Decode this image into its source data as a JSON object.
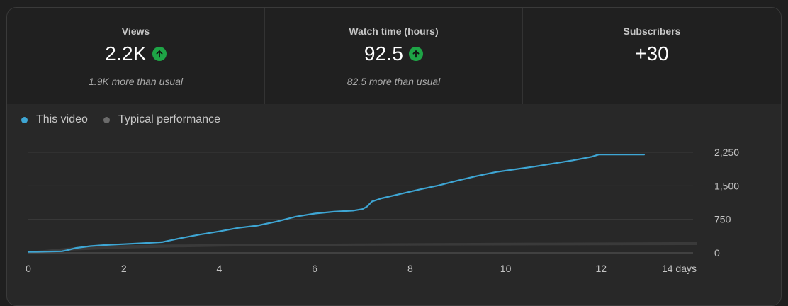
{
  "tabs": [
    {
      "label": "Views",
      "value": "2.2K",
      "note": "1.9K more than usual",
      "trend": "up",
      "selected": true
    },
    {
      "label": "Watch time (hours)",
      "value": "92.5",
      "note": "82.5 more than usual",
      "trend": "up",
      "selected": false
    },
    {
      "label": "Subscribers",
      "value": "+30",
      "note": "",
      "trend": "",
      "selected": false
    }
  ],
  "colors": {
    "this_video": "#3ea6d4",
    "typical": "#3a3a3a",
    "typical_dot": "#6b6b6b",
    "trend_up": "#1ea446"
  },
  "chart_data": {
    "type": "line",
    "legend": {
      "position": "top-left",
      "entries": [
        {
          "label": "This video",
          "color": "#3ea6d4"
        },
        {
          "label": "Typical performance",
          "color": "#6b6b6b"
        }
      ]
    },
    "x_unit_label": "14 days",
    "x_ticks": [
      {
        "value": 0,
        "label": "0"
      },
      {
        "value": 2,
        "label": "2"
      },
      {
        "value": 4,
        "label": "4"
      },
      {
        "value": 6,
        "label": "6"
      },
      {
        "value": 8,
        "label": "8"
      },
      {
        "value": 10,
        "label": "10"
      },
      {
        "value": 12,
        "label": "12"
      },
      {
        "value": 14,
        "label": "14 days"
      }
    ],
    "y_ticks": [
      {
        "value": 0,
        "label": "0"
      },
      {
        "value": 750,
        "label": "750"
      },
      {
        "value": 1500,
        "label": "1,500"
      },
      {
        "value": 2250,
        "label": "2,250"
      }
    ],
    "xlim": [
      0,
      14
    ],
    "ylim": [
      0,
      2250
    ],
    "grid": true,
    "series": [
      {
        "name": "This video",
        "x": [
          0,
          0.2,
          0.4,
          0.7,
          0.8,
          1.0,
          1.3,
          1.6,
          2.0,
          2.4,
          2.8,
          3.2,
          3.6,
          4.0,
          4.4,
          4.8,
          5.2,
          5.6,
          6.0,
          6.4,
          6.8,
          7.0,
          7.1,
          7.2,
          7.4,
          7.8,
          8.2,
          8.6,
          9.0,
          9.4,
          9.8,
          10.2,
          10.6,
          11.0,
          11.4,
          11.8,
          11.95,
          12.2,
          12.5,
          12.9
        ],
        "y": [
          20,
          25,
          30,
          35,
          55,
          110,
          150,
          175,
          195,
          215,
          240,
          330,
          410,
          480,
          560,
          610,
          700,
          810,
          880,
          920,
          945,
          980,
          1040,
          1150,
          1220,
          1320,
          1420,
          1510,
          1620,
          1720,
          1810,
          1870,
          1930,
          2000,
          2070,
          2150,
          2200,
          2200,
          2200,
          2200
        ]
      },
      {
        "name": "Typical performance",
        "band": true,
        "x": [
          0,
          1,
          2,
          3,
          4,
          5,
          6,
          7,
          8,
          9,
          10,
          11,
          12,
          13,
          14
        ],
        "low": [
          0,
          55,
          95,
          120,
          140,
          150,
          155,
          160,
          162,
          164,
          166,
          168,
          170,
          172,
          175
        ],
        "high": [
          30,
          130,
          170,
          185,
          195,
          200,
          205,
          210,
          215,
          220,
          225,
          228,
          232,
          236,
          240
        ]
      }
    ]
  }
}
